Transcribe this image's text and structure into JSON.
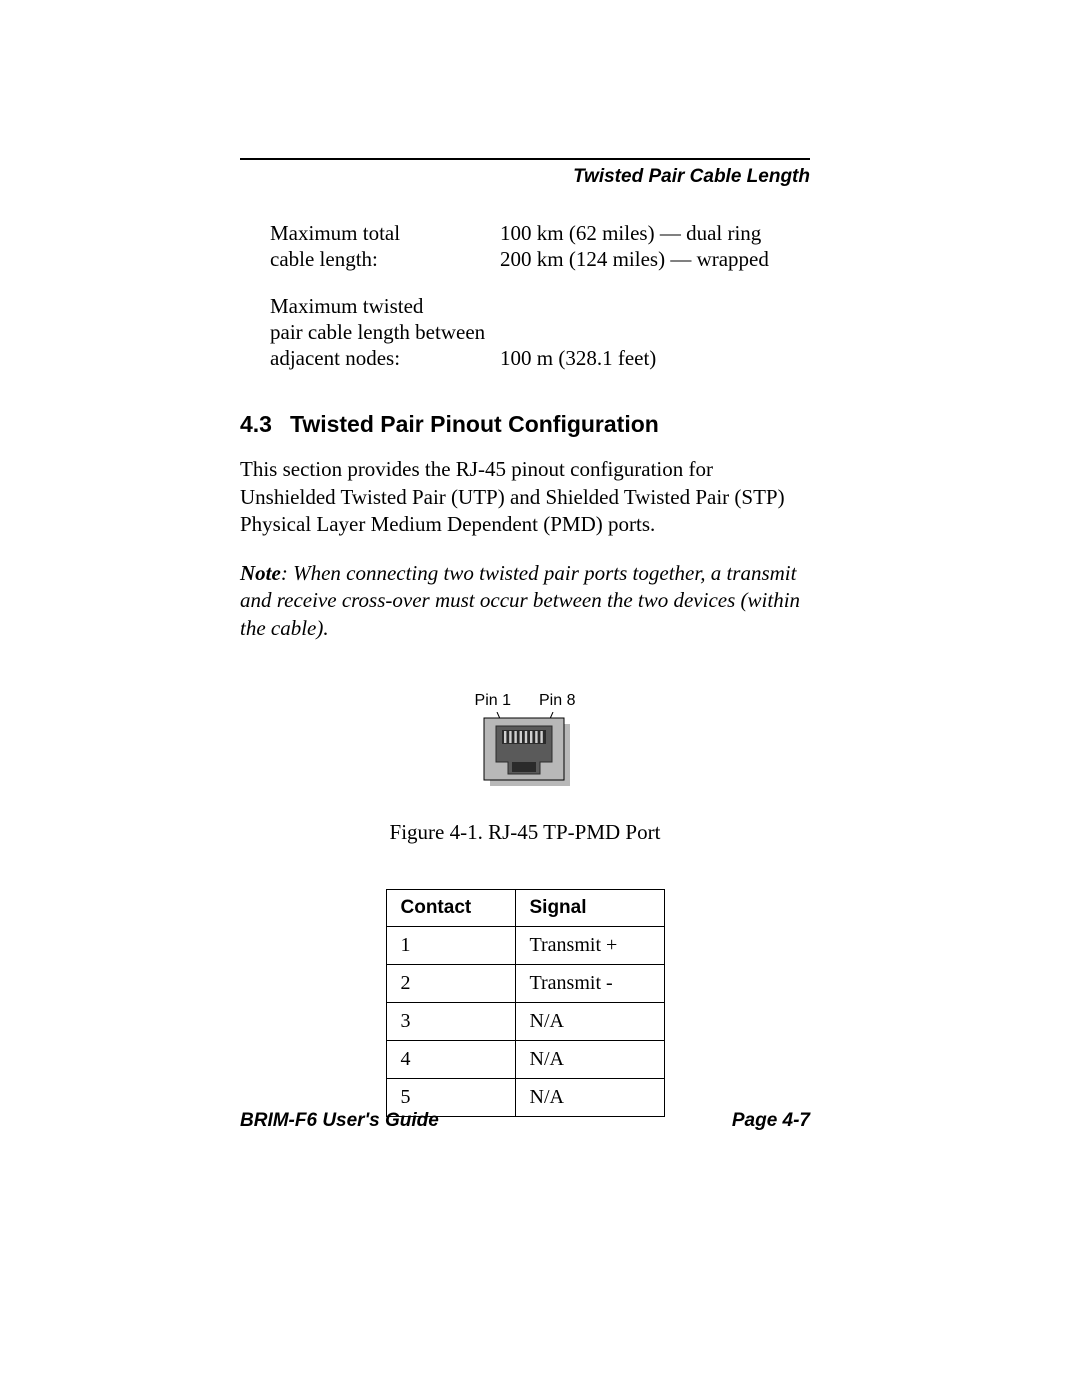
{
  "header": {
    "running_title": "Twisted Pair Cable Length"
  },
  "specs": [
    {
      "label_lines": [
        "Maximum total",
        "cable length:"
      ],
      "value_lines": [
        "100 km (62 miles) — dual ring",
        "200 km (124 miles) — wrapped"
      ]
    },
    {
      "label_lines": [
        "Maximum twisted",
        "pair cable length between",
        "adjacent nodes:"
      ],
      "value_lines": [
        "100 m (328.1 feet)"
      ]
    }
  ],
  "section": {
    "number": "4.3",
    "title": "Twisted Pair Pinout Configuration",
    "body": "This section provides the RJ-45 pinout configuration for Unshielded Twisted Pair (UTP) and Shielded Twisted Pair (STP) Physical Layer Medium Dependent (PMD) ports.",
    "note_label": "Note",
    "note_body": ": When connecting two twisted pair ports together, a transmit and receive cross-over must occur between the two devices (within the cable)."
  },
  "figure": {
    "pin_left_label": "Pin 1",
    "pin_right_label": "Pin 8",
    "caption": "Figure 4-1.  RJ-45 TP-PMD Port",
    "colors": {
      "shadow": "#b8b8b8",
      "body": "#5a5a5a",
      "dark": "#2b2b2b",
      "pin": "#d0d0d0",
      "stroke": "#000000"
    }
  },
  "table": {
    "columns": [
      "Contact",
      "Signal"
    ],
    "rows": [
      [
        "1",
        "Transmit +"
      ],
      [
        "2",
        "Transmit -"
      ],
      [
        "3",
        "N/A"
      ],
      [
        "4",
        "N/A"
      ],
      [
        "5",
        "N/A"
      ]
    ]
  },
  "footer": {
    "left": "BRIM-F6 User's Guide",
    "right": "Page 4-7"
  }
}
